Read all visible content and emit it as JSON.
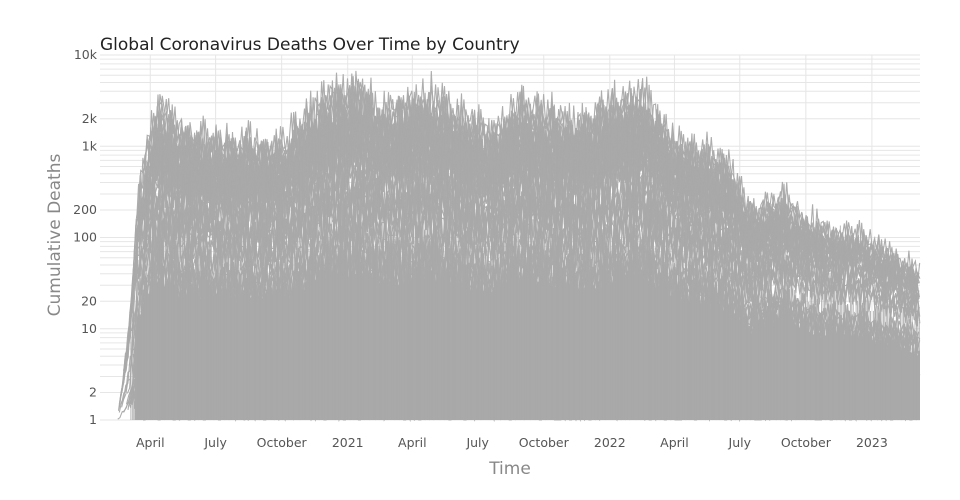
{
  "chart_data": {
    "type": "line",
    "title": "Global Coronavirus Deaths Over Time by Country",
    "xlabel": "Time",
    "ylabel": "Cumulative Deaths",
    "y_scale": "log",
    "ylim": [
      1,
      10000
    ],
    "xlim": [
      "2020-01-22",
      "2023-03-09"
    ],
    "grid": true,
    "legend": "none",
    "series_color": "#a9a9a9",
    "x_ticks": [
      {
        "date": "2020-04-01",
        "label": "April"
      },
      {
        "date": "2020-07-01",
        "label": "July"
      },
      {
        "date": "2020-10-01",
        "label": "October"
      },
      {
        "date": "2021-01-01",
        "label": "2021"
      },
      {
        "date": "2021-04-01",
        "label": "April"
      },
      {
        "date": "2021-07-01",
        "label": "July"
      },
      {
        "date": "2021-10-01",
        "label": "October"
      },
      {
        "date": "2022-01-01",
        "label": "2022"
      },
      {
        "date": "2022-04-01",
        "label": "April"
      },
      {
        "date": "2022-07-01",
        "label": "July"
      },
      {
        "date": "2022-10-01",
        "label": "October"
      },
      {
        "date": "2023-01-01",
        "label": "2023"
      }
    ],
    "y_ticks": [
      {
        "value": 1,
        "label": "1"
      },
      {
        "value": 2,
        "label": "2"
      },
      {
        "value": 10,
        "label": "10"
      },
      {
        "value": 20,
        "label": "20"
      },
      {
        "value": 100,
        "label": "100"
      },
      {
        "value": 200,
        "label": "200"
      },
      {
        "value": 1000,
        "label": "1k"
      },
      {
        "value": 2000,
        "label": "2k"
      },
      {
        "value": 10000,
        "label": "10k"
      }
    ],
    "envelope": [
      {
        "date": "2020-02-15",
        "value": 1
      },
      {
        "date": "2020-03-01",
        "value": 8
      },
      {
        "date": "2020-03-15",
        "value": 300
      },
      {
        "date": "2020-04-01",
        "value": 1500
      },
      {
        "date": "2020-04-15",
        "value": 3000
      },
      {
        "date": "2020-05-15",
        "value": 1500
      },
      {
        "date": "2020-07-01",
        "value": 1200
      },
      {
        "date": "2020-10-01",
        "value": 1100
      },
      {
        "date": "2020-12-01",
        "value": 3500
      },
      {
        "date": "2021-01-15",
        "value": 4500
      },
      {
        "date": "2021-02-15",
        "value": 2500
      },
      {
        "date": "2021-04-15",
        "value": 4000
      },
      {
        "date": "2021-06-01",
        "value": 2500
      },
      {
        "date": "2021-07-15",
        "value": 1500
      },
      {
        "date": "2021-09-01",
        "value": 3200
      },
      {
        "date": "2021-11-15",
        "value": 1800
      },
      {
        "date": "2022-01-01",
        "value": 3000
      },
      {
        "date": "2022-02-15",
        "value": 4000
      },
      {
        "date": "2022-04-01",
        "value": 1200
      },
      {
        "date": "2022-06-15",
        "value": 700
      },
      {
        "date": "2022-07-15",
        "value": 200
      },
      {
        "date": "2022-09-01",
        "value": 300
      },
      {
        "date": "2022-10-15",
        "value": 150
      },
      {
        "date": "2022-12-15",
        "value": 130
      },
      {
        "date": "2023-02-01",
        "value": 80
      },
      {
        "date": "2023-03-09",
        "value": 50
      }
    ]
  }
}
